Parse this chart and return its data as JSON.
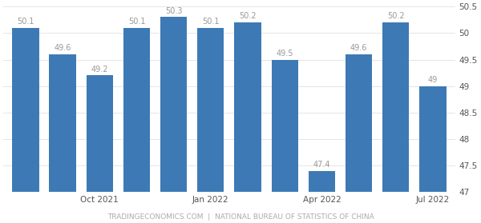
{
  "x_tick_labels": [
    "Oct 2021",
    "Jan 2022",
    "Apr 2022",
    "Jul 2022"
  ],
  "x_tick_positions": [
    2,
    5,
    8,
    11
  ],
  "values": [
    50.1,
    49.6,
    49.2,
    50.1,
    50.3,
    50.1,
    50.2,
    49.5,
    47.4,
    49.6,
    50.2,
    49.0
  ],
  "value_labels": [
    "50.1",
    "49.6",
    "49.2",
    "50.1",
    "50.3",
    "50.1",
    "50.2",
    "49.5",
    "47.4",
    "49.6",
    "50.2",
    "49"
  ],
  "bar_color": "#3d7ab5",
  "ylim_min": 47.0,
  "ylim_max": 50.5,
  "yticks": [
    47.0,
    47.5,
    48.0,
    48.5,
    49.0,
    49.5,
    50.0,
    50.5
  ],
  "ytick_labels": [
    "47",
    "47.5",
    "48",
    "48.5",
    "49",
    "49.5",
    "50",
    "50.5"
  ],
  "footer": "TRADINGECONOMICS.COM  |  NATIONAL BUREAU OF STATISTICS OF CHINA",
  "background_color": "#ffffff",
  "label_color": "#999999",
  "tick_color": "#555555",
  "grid_color": "#e0e0e0",
  "bar_label_fontsize": 7.0,
  "axis_label_fontsize": 7.5,
  "footer_fontsize": 6.5
}
